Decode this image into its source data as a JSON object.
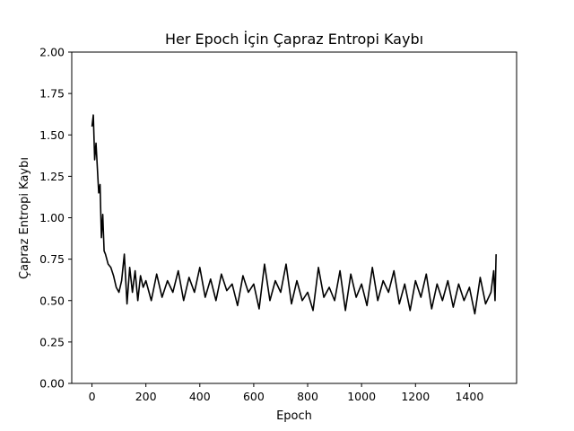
{
  "chart_data": {
    "type": "line",
    "title": "Her Epoch İçin Çapraz Entropi Kaybı",
    "xlabel": "Epoch",
    "ylabel": "Çapraz Entropi Kaybı",
    "xlim": [
      -75,
      1575
    ],
    "ylim": [
      0,
      2.0
    ],
    "x_ticks": [
      0,
      200,
      400,
      600,
      800,
      1000,
      1200,
      1400
    ],
    "x_tick_labels": [
      "0",
      "200",
      "400",
      "600",
      "800",
      "1000",
      "1200",
      "1400"
    ],
    "y_ticks": [
      0.0,
      0.25,
      0.5,
      0.75,
      1.0,
      1.25,
      1.5,
      1.75,
      2.0
    ],
    "y_tick_labels": [
      "0.00",
      "0.25",
      "0.50",
      "0.75",
      "1.00",
      "1.25",
      "1.50",
      "1.75",
      "2.00"
    ],
    "grid": false,
    "line_color": "#000000",
    "series": [
      {
        "x": [
          0,
          5,
          10,
          15,
          20,
          25,
          30,
          35,
          40,
          45,
          50,
          60,
          70,
          80,
          90,
          100,
          110,
          120,
          130,
          140,
          150,
          160,
          170,
          180,
          190,
          200,
          220,
          240,
          260,
          280,
          300,
          320,
          340,
          360,
          380,
          400,
          420,
          440,
          460,
          480,
          500,
          520,
          540,
          560,
          580,
          600,
          620,
          640,
          660,
          680,
          700,
          720,
          740,
          760,
          780,
          800,
          820,
          840,
          860,
          880,
          900,
          920,
          940,
          960,
          980,
          1000,
          1020,
          1040,
          1060,
          1080,
          1100,
          1120,
          1140,
          1160,
          1180,
          1200,
          1220,
          1240,
          1260,
          1280,
          1300,
          1320,
          1340,
          1360,
          1380,
          1400,
          1420,
          1440,
          1460,
          1480,
          1490,
          1495,
          1499
        ],
        "values": [
          1.55,
          1.62,
          1.35,
          1.45,
          1.3,
          1.15,
          1.2,
          0.88,
          1.02,
          0.8,
          0.78,
          0.72,
          0.7,
          0.65,
          0.58,
          0.55,
          0.62,
          0.78,
          0.48,
          0.7,
          0.55,
          0.68,
          0.5,
          0.65,
          0.58,
          0.62,
          0.5,
          0.66,
          0.52,
          0.62,
          0.55,
          0.68,
          0.5,
          0.64,
          0.55,
          0.7,
          0.52,
          0.63,
          0.5,
          0.66,
          0.56,
          0.6,
          0.47,
          0.65,
          0.55,
          0.6,
          0.45,
          0.72,
          0.5,
          0.62,
          0.55,
          0.72,
          0.48,
          0.62,
          0.5,
          0.55,
          0.44,
          0.7,
          0.52,
          0.58,
          0.5,
          0.68,
          0.44,
          0.66,
          0.52,
          0.6,
          0.47,
          0.7,
          0.5,
          0.62,
          0.55,
          0.68,
          0.48,
          0.6,
          0.44,
          0.62,
          0.52,
          0.66,
          0.45,
          0.6,
          0.5,
          0.62,
          0.46,
          0.6,
          0.5,
          0.58,
          0.42,
          0.64,
          0.48,
          0.55,
          0.68,
          0.5,
          0.78
        ]
      }
    ]
  }
}
